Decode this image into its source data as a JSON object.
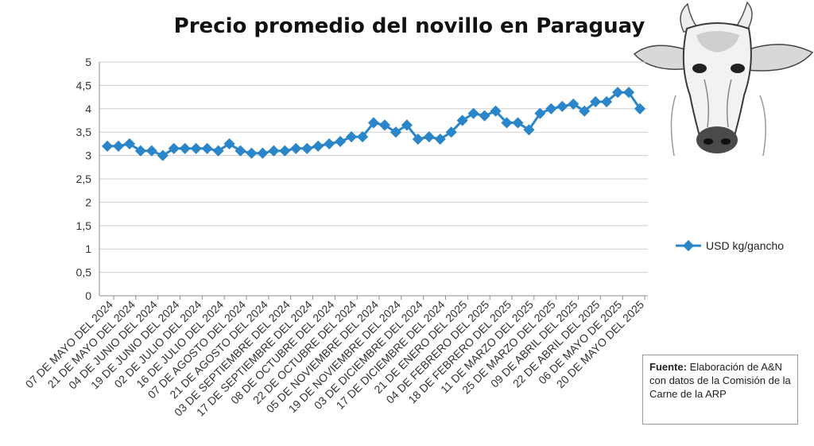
{
  "chart_data": {
    "type": "line",
    "title": "Precio promedio del novillo en Paraguay",
    "xlabel": "",
    "ylabel": "",
    "ylim": [
      0,
      5
    ],
    "y_ticks": [
      "0",
      "0,5",
      "1",
      "1,5",
      "2",
      "2,5",
      "3",
      "3,5",
      "4",
      "4,5",
      "5"
    ],
    "x_tick_labels": [
      "07 DE MAYO  DEL 2024",
      "21 DE MAYO  DEL 2024",
      "04 DE JUNIO  DEL 2024",
      "19 DE JUNIO  DEL 2024",
      "02 DE JULIO  DEL 2024",
      "16 DE JULIO  DEL 2024",
      "07 DE AGOSTO DEL 2024",
      "21 DE AGOSTO  DEL 2024",
      "03 DE SEPTIEMBRE DEL 2024",
      "17 DE SEPTIEMBRE DEL 2024",
      "08 DE OCTUBRE DEL 2024",
      "22 DE OCTUBRE  DEL 2024",
      "05 DE NOVIEMBRE  DEL 2024",
      "19 DE NOVIEMBRE DEL 2024",
      "03 DE DICIEMBRE DEL 2024",
      "17 DE DICIEMBRE DEL 2024",
      "21 DE ENERO DEL 2025",
      "04 DE FEBRERO DEL 2025",
      "18 DE FEBRERO DEL 2025",
      "11 DE MARZO DEL 2025",
      "25 DE MARZO DEL 2025",
      "09 DE ABRIL  DEL 2025",
      "22 DE ABRIL DEL 2025",
      "06 DE MAYO DE 2025",
      "20 DE MAYO DEL 2025"
    ],
    "series": [
      {
        "name": "USD kg/gancho",
        "color": "#2a86c8",
        "values": [
          3.2,
          3.2,
          3.25,
          3.1,
          3.1,
          3.0,
          3.15,
          3.15,
          3.15,
          3.15,
          3.1,
          3.25,
          3.1,
          3.05,
          3.05,
          3.1,
          3.1,
          3.15,
          3.15,
          3.2,
          3.25,
          3.3,
          3.4,
          3.4,
          3.7,
          3.65,
          3.5,
          3.65,
          3.35,
          3.4,
          3.35,
          3.5,
          3.75,
          3.9,
          3.85,
          3.95,
          3.7,
          3.7,
          3.55,
          3.9,
          4.0,
          4.05,
          4.1,
          3.95,
          4.15,
          4.15,
          4.35,
          4.35,
          4.0
        ]
      }
    ],
    "grid": true,
    "legend": "right"
  },
  "source_note": {
    "label": "Fuente:",
    "text": " Elaboración de A&N con datos de la Comisión de la Carne de la ARP"
  },
  "illustration": "cow-head"
}
